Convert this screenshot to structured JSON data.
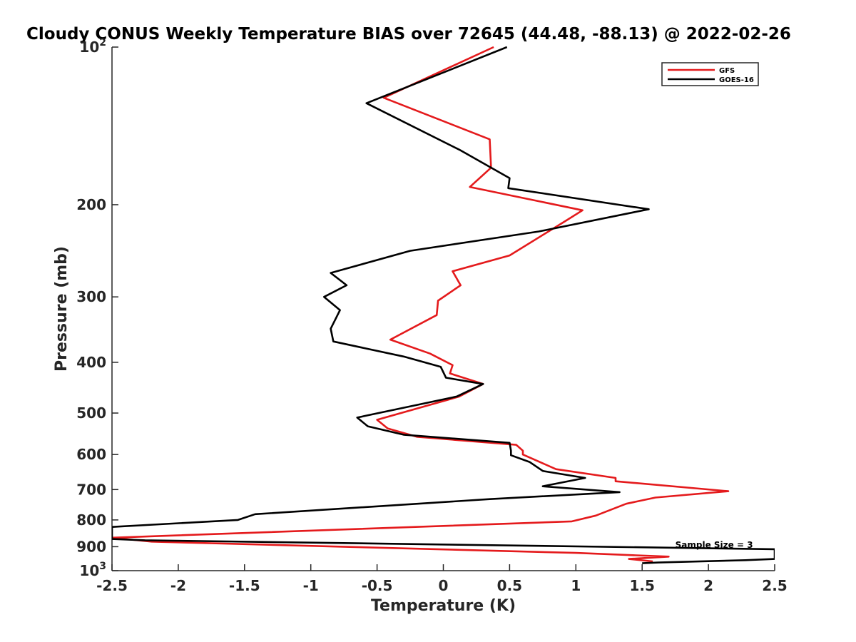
{
  "chart_data": {
    "type": "line",
    "title": "Cloudy CONUS Weekly Temperature BIAS over 72645 (44.48, -88.13) @ 2022-02-26",
    "xlabel": "Temperature (K)",
    "ylabel": "Pressure (mb)",
    "xlim": [
      -2.5,
      2.5
    ],
    "ylim": [
      100,
      1000
    ],
    "yscale": "log",
    "y_reversed": true,
    "x_ticks": [
      -2.5,
      -2,
      -1.5,
      -1,
      -0.5,
      0,
      0.5,
      1,
      1.5,
      2,
      2.5
    ],
    "x_tick_labels": [
      "-2.5",
      "-2",
      "-1.5",
      "-1",
      "-0.5",
      "0",
      "0.5",
      "1",
      "1.5",
      "2",
      "2.5"
    ],
    "y_ticks": [
      100,
      200,
      300,
      400,
      500,
      600,
      700,
      800,
      900,
      1000
    ],
    "y_tick_labels": [
      {
        "base": "10",
        "exp": "2"
      },
      {
        "base": "200",
        "exp": ""
      },
      {
        "base": "300",
        "exp": ""
      },
      {
        "base": "400",
        "exp": ""
      },
      {
        "base": "500",
        "exp": ""
      },
      {
        "base": "600",
        "exp": ""
      },
      {
        "base": "700",
        "exp": ""
      },
      {
        "base": "800",
        "exp": ""
      },
      {
        "base": "900",
        "exp": ""
      },
      {
        "base": "10",
        "exp": "3"
      }
    ],
    "grid": false,
    "legend_position": "top-right",
    "series": [
      {
        "name": "GFS",
        "color": "#e41a1c",
        "points": [
          [
            0.38,
            100
          ],
          [
            -0.45,
            125
          ],
          [
            0.35,
            150
          ],
          [
            0.36,
            170
          ],
          [
            0.2,
            185
          ],
          [
            1.05,
            205
          ],
          [
            0.92,
            215
          ],
          [
            0.5,
            250
          ],
          [
            0.07,
            268
          ],
          [
            0.13,
            285
          ],
          [
            -0.04,
            305
          ],
          [
            -0.05,
            325
          ],
          [
            -0.4,
            362
          ],
          [
            -0.1,
            385
          ],
          [
            0.07,
            405
          ],
          [
            0.05,
            420
          ],
          [
            0.3,
            440
          ],
          [
            0.12,
            465
          ],
          [
            -0.5,
            515
          ],
          [
            -0.42,
            535
          ],
          [
            -0.2,
            555
          ],
          [
            0.55,
            575
          ],
          [
            0.6,
            590
          ],
          [
            0.6,
            600
          ],
          [
            0.85,
            640
          ],
          [
            1.3,
            665
          ],
          [
            1.3,
            675
          ],
          [
            2.15,
            705
          ],
          [
            1.6,
            725
          ],
          [
            1.38,
            745
          ],
          [
            1.15,
            785
          ],
          [
            0.97,
            805
          ],
          [
            -2.5,
            865
          ],
          [
            -2.2,
            880
          ],
          [
            1.0,
            925
          ],
          [
            1.7,
            940
          ],
          [
            1.4,
            950
          ],
          [
            1.58,
            960
          ]
        ]
      },
      {
        "name": "GOES-16",
        "color": "#000000",
        "points": [
          [
            0.48,
            100
          ],
          [
            -0.58,
            128
          ],
          [
            0.12,
            157
          ],
          [
            0.5,
            178
          ],
          [
            0.49,
            186
          ],
          [
            1.55,
            204
          ],
          [
            0.72,
            225
          ],
          [
            -0.25,
            245
          ],
          [
            -0.85,
            270
          ],
          [
            -0.73,
            285
          ],
          [
            -0.9,
            300
          ],
          [
            -0.78,
            318
          ],
          [
            -0.85,
            345
          ],
          [
            -0.83,
            365
          ],
          [
            -0.3,
            390
          ],
          [
            -0.02,
            408
          ],
          [
            0.02,
            428
          ],
          [
            0.3,
            440
          ],
          [
            0.1,
            465
          ],
          [
            -0.65,
            510
          ],
          [
            -0.57,
            530
          ],
          [
            -0.3,
            550
          ],
          [
            0.5,
            570
          ],
          [
            0.51,
            590
          ],
          [
            0.51,
            602
          ],
          [
            0.65,
            620
          ],
          [
            0.75,
            645
          ],
          [
            1.07,
            665
          ],
          [
            0.75,
            690
          ],
          [
            1.33,
            708
          ],
          [
            0.35,
            730
          ],
          [
            -1.42,
            780
          ],
          [
            -1.55,
            800
          ],
          [
            -2.5,
            825
          ],
          [
            -2.5,
            870
          ],
          [
            -2.25,
            875
          ],
          [
            2.5,
            910
          ],
          [
            2.5,
            950
          ],
          [
            2.28,
            955
          ],
          [
            1.62,
            965
          ],
          [
            1.5,
            968
          ]
        ]
      }
    ],
    "annotations": [
      {
        "text": "Sample Size = 3",
        "x": 1.75,
        "y": 905
      }
    ]
  }
}
